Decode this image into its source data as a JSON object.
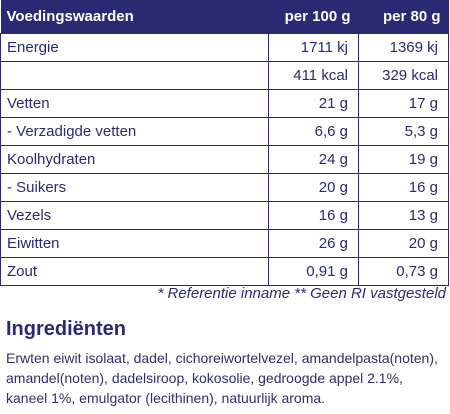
{
  "table": {
    "header": {
      "label": "Voedingswaarden",
      "col1": "per 100 g",
      "col2": "per 80 g"
    },
    "rows": [
      {
        "label": "Energie",
        "v100": "1711 kj",
        "v80": "1369 kj"
      },
      {
        "label": "",
        "v100": "411 kcal",
        "v80": "329 kcal"
      },
      {
        "label": "Vetten",
        "v100": "21 g",
        "v80": "17 g"
      },
      {
        "label": "- Verzadigde vetten",
        "v100": "6,6 g",
        "v80": "5,3 g"
      },
      {
        "label": "Koolhydraten",
        "v100": "24 g",
        "v80": "19 g"
      },
      {
        "label": "- Suikers",
        "v100": "20 g",
        "v80": "16 g"
      },
      {
        "label": "Vezels",
        "v100": "16 g",
        "v80": "13 g"
      },
      {
        "label": "Eiwitten",
        "v100": "26 g",
        "v80": "20 g"
      },
      {
        "label": "Zout",
        "v100": "0,91 g",
        "v80": "0,73 g"
      }
    ]
  },
  "notes": "* Referentie inname ** Geen RI vastgesteld",
  "ingredients": {
    "title": "Ingrediënten",
    "text": "Erwten eiwit isolaat, dadel, cichoreiwortelvezel, amandelpasta(noten), amandel(noten), dadelsiroop, kokosolie, gedroogde appel 2.1%, kaneel 1%, emulgator (lecithinen), natuurlijk aroma."
  }
}
